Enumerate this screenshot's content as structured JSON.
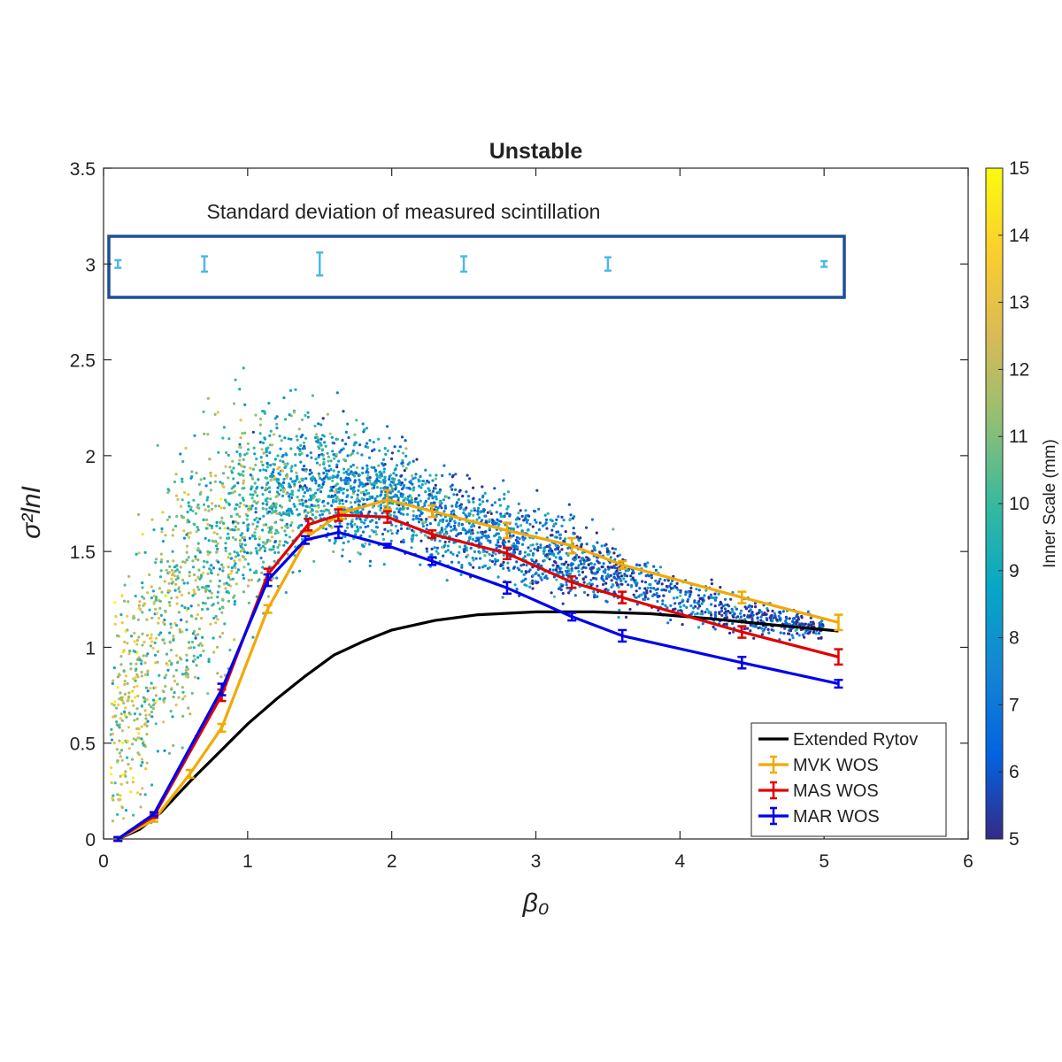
{
  "chart_data": {
    "type": "scatter",
    "title": "Unstable",
    "xlabel": "β₀",
    "ylabel": "σ²lnI",
    "xlim": [
      0,
      6
    ],
    "ylim": [
      0,
      3.5
    ],
    "xticks": [
      "0",
      "1",
      "2",
      "3",
      "4",
      "5",
      "6"
    ],
    "yticks": [
      "0",
      "0.5",
      "1",
      "1.5",
      "2",
      "2.5",
      "3",
      "3.5"
    ],
    "grid": false,
    "legend_position": "bottom-right",
    "annotation": {
      "text": "Standard deviation of measured scintillation",
      "box_color": "#1f4e96",
      "errorbar_color": "#4db8e8",
      "center_y": 3.0,
      "errorbars": [
        {
          "x": 0.1,
          "half_range": 0.02
        },
        {
          "x": 0.7,
          "half_range": 0.04
        },
        {
          "x": 1.5,
          "half_range": 0.06
        },
        {
          "x": 2.5,
          "half_range": 0.04
        },
        {
          "x": 3.5,
          "half_range": 0.035
        },
        {
          "x": 5.0,
          "half_range": 0.015
        }
      ]
    },
    "colorbar": {
      "label": "Inner Scale (mm)",
      "min": 5,
      "max": 15,
      "ticks": [
        "5",
        "6",
        "7",
        "8",
        "9",
        "10",
        "11",
        "12",
        "13",
        "14",
        "15"
      ],
      "colormap": [
        "#352a87",
        "#0363e1",
        "#1485d4",
        "#06a7c6",
        "#38b99e",
        "#92bf73",
        "#d9ba56",
        "#fcce2e",
        "#f9fb0e"
      ]
    },
    "scatter_cloud": {
      "description_points": [
        {
          "x": 0.1,
          "y_center": 0.6,
          "y_spread": 0.55,
          "inner_scale": 12
        },
        {
          "x": 0.5,
          "y_center": 1.2,
          "y_spread": 0.7,
          "inner_scale": 11
        },
        {
          "x": 1.0,
          "y_center": 1.75,
          "y_spread": 0.45,
          "inner_scale": 10
        },
        {
          "x": 1.5,
          "y_center": 1.85,
          "y_spread": 0.3,
          "inner_scale": 8.5
        },
        {
          "x": 2.0,
          "y_center": 1.8,
          "y_spread": 0.25,
          "inner_scale": 8
        },
        {
          "x": 2.5,
          "y_center": 1.65,
          "y_spread": 0.2,
          "inner_scale": 7.5
        },
        {
          "x": 3.0,
          "y_center": 1.5,
          "y_spread": 0.2,
          "inner_scale": 7
        },
        {
          "x": 3.5,
          "y_center": 1.4,
          "y_spread": 0.15,
          "inner_scale": 6.5
        },
        {
          "x": 4.0,
          "y_center": 1.25,
          "y_spread": 0.12,
          "inner_scale": 6.5
        },
        {
          "x": 4.5,
          "y_center": 1.15,
          "y_spread": 0.08,
          "inner_scale": 6
        },
        {
          "x": 5.0,
          "y_center": 1.1,
          "y_spread": 0.05,
          "inner_scale": 6
        }
      ]
    },
    "series": [
      {
        "name": "Extended Rytov",
        "color": "#000000",
        "errorbars": false,
        "x": [
          0.1,
          0.25,
          0.4,
          0.6,
          0.8,
          1.0,
          1.2,
          1.4,
          1.6,
          1.8,
          2.0,
          2.3,
          2.6,
          3.0,
          3.4,
          3.8,
          4.2,
          4.6,
          5.1
        ],
        "y": [
          0.0,
          0.05,
          0.14,
          0.3,
          0.45,
          0.6,
          0.73,
          0.85,
          0.96,
          1.03,
          1.09,
          1.14,
          1.17,
          1.185,
          1.185,
          1.175,
          1.15,
          1.12,
          1.085
        ]
      },
      {
        "name": "MVK WOS",
        "color": "#f2a900",
        "errorbars": true,
        "x": [
          0.1,
          0.35,
          0.6,
          0.82,
          1.14,
          1.42,
          1.65,
          1.97,
          2.28,
          2.8,
          3.25,
          3.6,
          4.43,
          5.1
        ],
        "y": [
          0.0,
          0.1,
          0.34,
          0.58,
          1.2,
          1.58,
          1.7,
          1.77,
          1.71,
          1.61,
          1.53,
          1.43,
          1.26,
          1.13
        ],
        "err": [
          0.01,
          0.01,
          0.02,
          0.02,
          0.02,
          0.02,
          0.03,
          0.05,
          0.03,
          0.04,
          0.04,
          0.02,
          0.03,
          0.04
        ]
      },
      {
        "name": "MAS WOS",
        "color": "#e00000",
        "errorbars": true,
        "x": [
          0.1,
          0.35,
          0.82,
          1.14,
          1.42,
          1.63,
          1.97,
          2.28,
          2.8,
          3.25,
          3.6,
          4.43,
          5.1
        ],
        "y": [
          0.0,
          0.12,
          0.75,
          1.38,
          1.64,
          1.69,
          1.68,
          1.59,
          1.49,
          1.34,
          1.26,
          1.08,
          0.95
        ],
        "err": [
          0.01,
          0.01,
          0.03,
          0.03,
          0.03,
          0.03,
          0.03,
          0.02,
          0.03,
          0.03,
          0.03,
          0.03,
          0.04
        ]
      },
      {
        "name": "MAR WOS",
        "color": "#0000ee",
        "errorbars": true,
        "x": [
          0.1,
          0.35,
          0.82,
          1.14,
          1.4,
          1.63,
          1.97,
          2.28,
          2.8,
          3.25,
          3.6,
          4.43,
          5.1
        ],
        "y": [
          0.0,
          0.13,
          0.78,
          1.35,
          1.56,
          1.6,
          1.53,
          1.45,
          1.31,
          1.16,
          1.06,
          0.92,
          0.81
        ],
        "err": [
          0.01,
          0.01,
          0.03,
          0.03,
          0.02,
          0.03,
          0.01,
          0.02,
          0.03,
          0.02,
          0.03,
          0.03,
          0.02
        ]
      }
    ]
  }
}
